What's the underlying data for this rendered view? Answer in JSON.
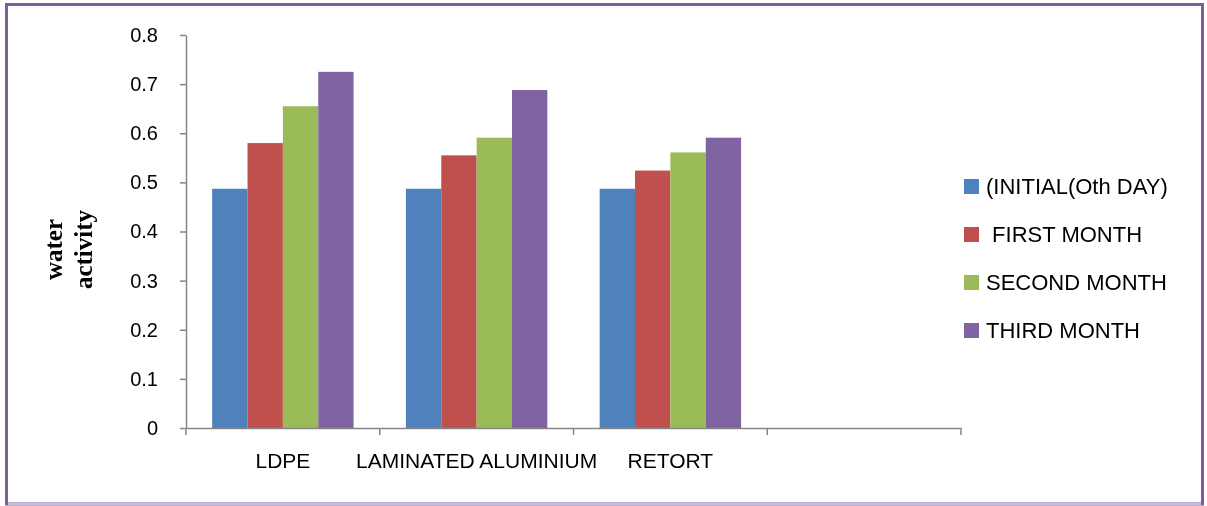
{
  "chart_data": {
    "type": "bar",
    "ylabel": "water activity",
    "categories": [
      "LDPE",
      "LAMINATED ALUMINIUM",
      "RETORT",
      null
    ],
    "series": [
      {
        "name": "(INITIAL(Oth DAY)",
        "color": "#4f81bd",
        "values": [
          0.487,
          0.487,
          0.487,
          null
        ]
      },
      {
        "name": " FIRST MONTH",
        "color": "#c0504d",
        "values": [
          0.58,
          0.555,
          0.524,
          null
        ]
      },
      {
        "name": "SECOND MONTH",
        "color": "#9bbb59",
        "values": [
          0.655,
          0.591,
          0.561,
          null
        ]
      },
      {
        "name": "THIRD MONTH",
        "color": "#8064a2",
        "values": [
          0.725,
          0.688,
          0.591,
          null
        ]
      }
    ],
    "ylim": [
      0,
      0.8
    ],
    "yticks": [
      0,
      0.1,
      0.2,
      0.3,
      0.4,
      0.5,
      0.6,
      0.7,
      0.8
    ],
    "legend": "right"
  }
}
